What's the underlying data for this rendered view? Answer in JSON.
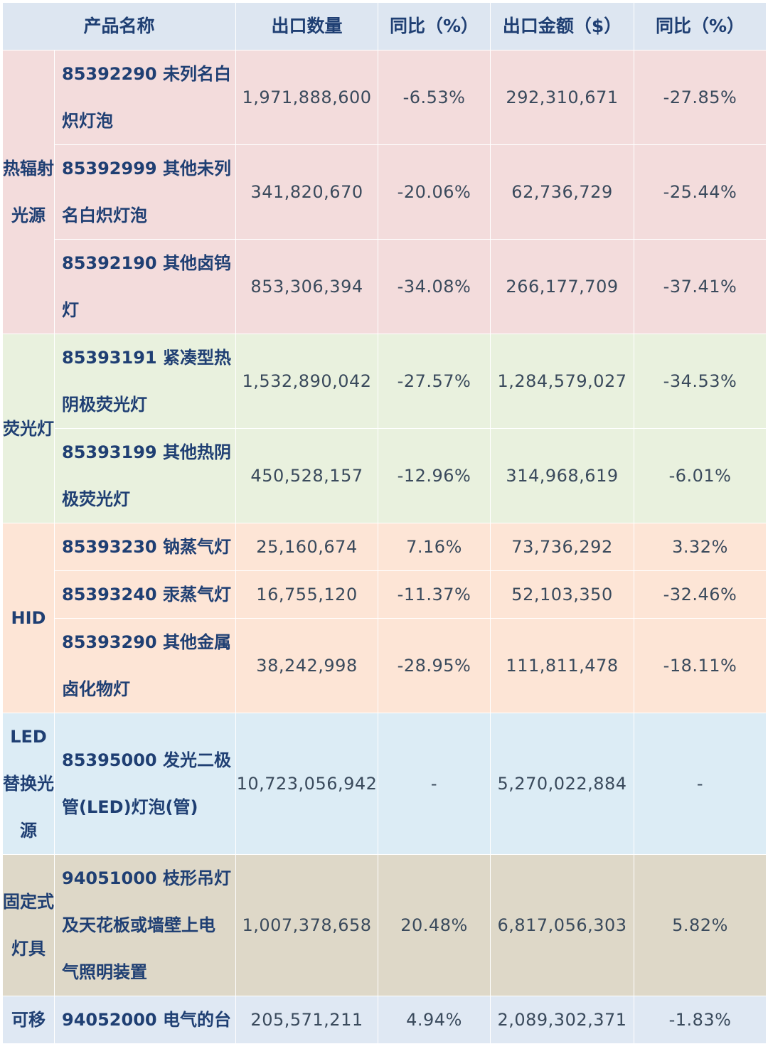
{
  "header": {
    "product": "产品名称",
    "qty": "出口数量",
    "qty_yoy": "同比（%）",
    "amount": "出口金额（$）",
    "amount_yoy": "同比（%）"
  },
  "groups": [
    {
      "category": "热辐射光源",
      "rows": [
        {
          "product": "85392290 未列名白炽灯泡",
          "qty": "1,971,888,600",
          "qty_yoy": "-6.53%",
          "amount": "292,310,671",
          "amount_yoy": "-27.85%"
        },
        {
          "product": "85392999 其他未列名白炽灯泡",
          "qty": "341,820,670",
          "qty_yoy": "-20.06%",
          "amount": "62,736,729",
          "amount_yoy": "-25.44%"
        },
        {
          "product": "85392190 其他卤钨灯",
          "qty": "853,306,394",
          "qty_yoy": "-34.08%",
          "amount": "266,177,709",
          "amount_yoy": "-37.41%"
        }
      ]
    },
    {
      "category": "荧光灯",
      "rows": [
        {
          "product": "85393191 紧凑型热阴极荧光灯",
          "qty": "1,532,890,042",
          "qty_yoy": "-27.57%",
          "amount": "1,284,579,027",
          "amount_yoy": "-34.53%"
        },
        {
          "product": "85393199 其他热阴极荧光灯",
          "qty": "450,528,157",
          "qty_yoy": "-12.96%",
          "amount": "314,968,619",
          "amount_yoy": "-6.01%"
        }
      ]
    },
    {
      "category": "HID",
      "rows": [
        {
          "product": "85393230 钠蒸气灯",
          "qty": "25,160,674",
          "qty_yoy": "7.16%",
          "amount": "73,736,292",
          "amount_yoy": "3.32%"
        },
        {
          "product": "85393240 汞蒸气灯",
          "qty": "16,755,120",
          "qty_yoy": "-11.37%",
          "amount": "52,103,350",
          "amount_yoy": "-32.46%"
        },
        {
          "product": "85393290 其他金属卤化物灯",
          "qty": "38,242,998",
          "qty_yoy": "-28.95%",
          "amount": "111,811,478",
          "amount_yoy": "-18.11%"
        }
      ]
    },
    {
      "category": "LED替换光源",
      "rows": [
        {
          "product": "85395000 发光二极管(LED)灯泡(管)",
          "qty": "10,723,056,942",
          "qty_yoy": "-",
          "amount": "5,270,022,884",
          "amount_yoy": "-"
        }
      ]
    },
    {
      "category": "固定式灯具",
      "rows": [
        {
          "product": "94051000 枝形吊灯及天花板或墙壁上电气照明装置",
          "qty": "1,007,378,658",
          "qty_yoy": "20.48%",
          "amount": "6,817,056,303",
          "amount_yoy": "5.82%"
        }
      ]
    },
    {
      "category": "可移",
      "rows": [
        {
          "product": "94052000 电气的台",
          "qty": "205,571,211",
          "qty_yoy": "4.94%",
          "amount": "2,089,302,371",
          "amount_yoy": "-1.83%"
        }
      ]
    }
  ]
}
